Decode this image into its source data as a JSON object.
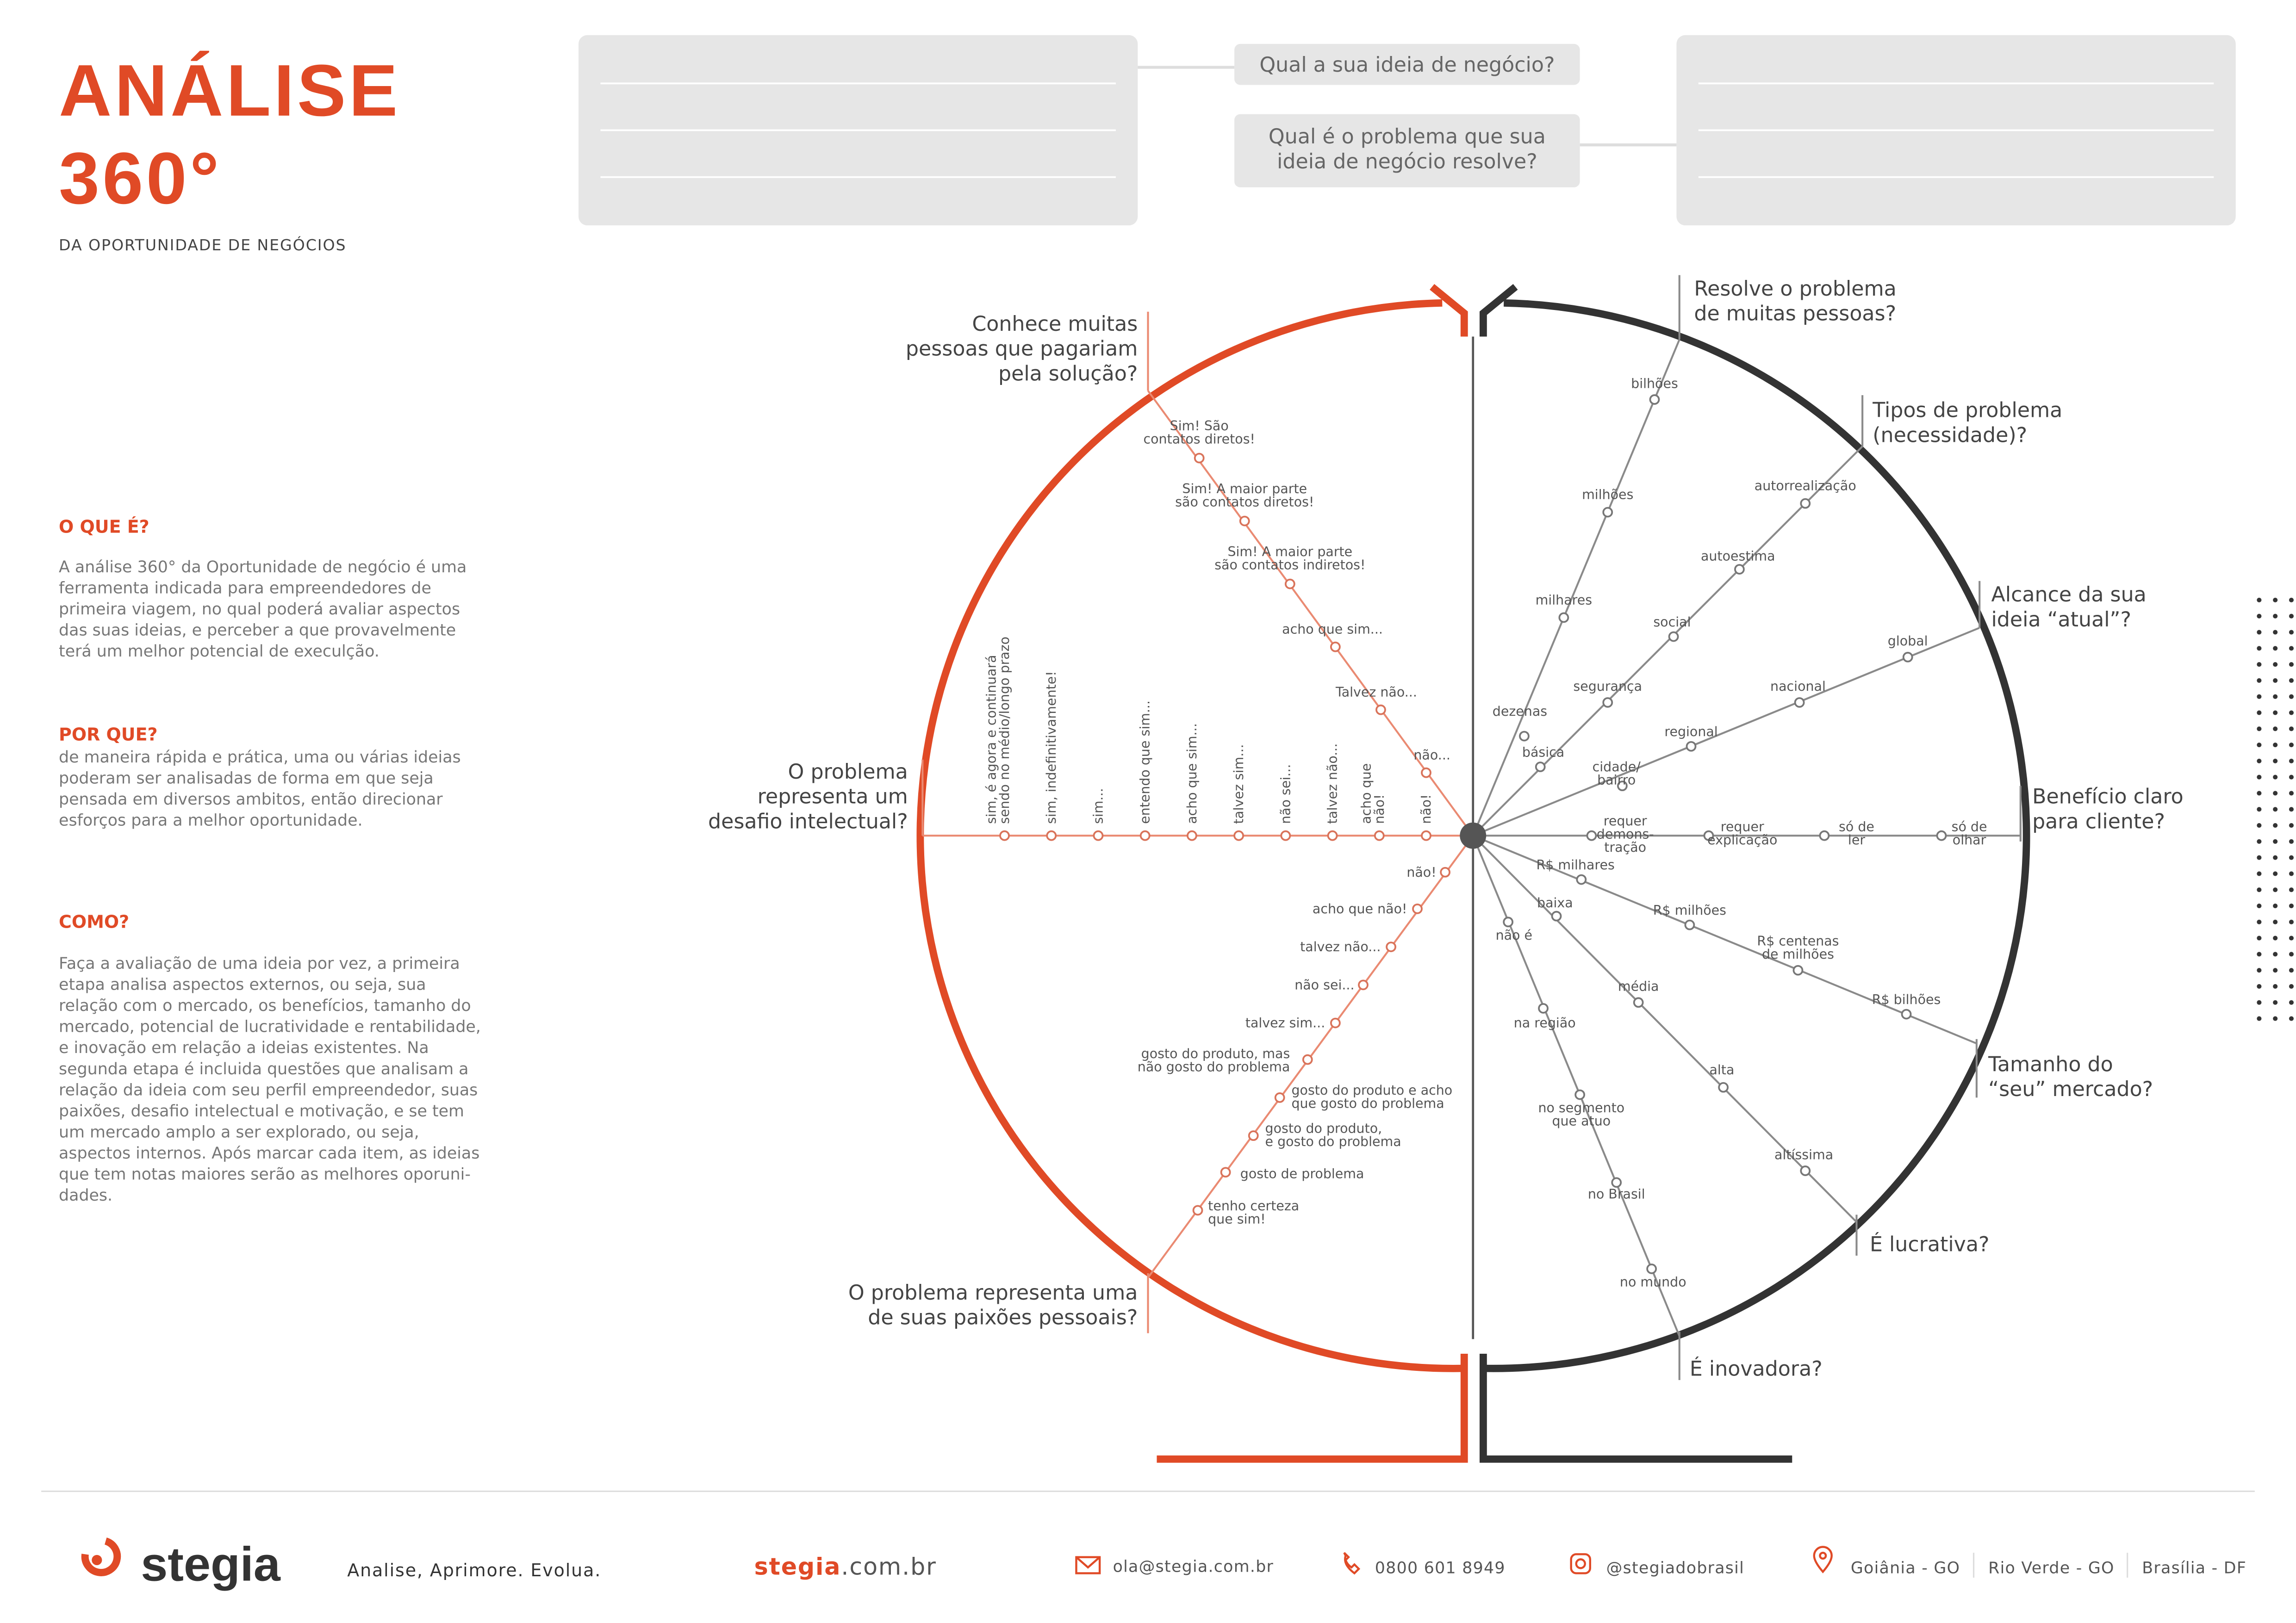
{
  "header": {
    "title_lines": [
      "ANÁLISE",
      "360°"
    ],
    "subtitle": "DA OPORTUNIDADE DE NEGÓCIOS"
  },
  "idea_questions": [
    [
      "Qual a sua  ideia de negócio?"
    ],
    [
      "Qual é o problema que sua",
      "ideia de negócio resolve?"
    ]
  ],
  "sections": [
    {
      "heading": "O QUE É?",
      "body": [
        "A análise 360° da Oportunidade de negócio é uma",
        "ferramenta indicada para empreendedores de",
        "primeira viagem, no qual poderá avaliar aspectos",
        "das suas ideias, e perceber a que provavelmente",
        "terá um melhor potencial de execulção."
      ]
    },
    {
      "heading": "POR QUE?",
      "body": [
        "de maneira rápida e prática, uma ou várias ideias",
        "poderam ser analisadas de forma em que seja",
        "pensada em diversos ambitos, então direcionar",
        "esforços para a melhor oportunidade."
      ]
    },
    {
      "heading": "COMO?",
      "body": [
        "Faça a avaliação de uma ideia por vez, a primeira",
        "etapa analisa aspectos externos, ou seja, sua",
        "relação com o mercado, os benefícios, tamanho do",
        "mercado, potencial de lucratividade e rentabilidade,",
        "e inovação em relação a ideias existentes. Na",
        "segunda etapa é incluida questões que analisam a",
        "relação da ideia com seu perfil empreendedor, suas",
        "paixões, desafio intelectual e motivação, e  se tem",
        "um mercado amplo a ser explorado, ou seja,",
        "aspectos internos. Após marcar cada item, as ideias",
        "que tem notas maiores serão as melhores oporuni-",
        "dades."
      ]
    }
  ],
  "diagram": {
    "axes": [
      {
        "question": [
          "Resolve o problema",
          "de muitas pessoas?"
        ],
        "options": [
          [
            "dezenas"
          ],
          [
            "milhares"
          ],
          [
            "milhões"
          ],
          [
            "bilhões"
          ]
        ]
      },
      {
        "question": [
          "Tipos de problema",
          "(necessidade)?"
        ],
        "options": [
          [
            "básica"
          ],
          [
            "segurança"
          ],
          [
            "social"
          ],
          [
            "autoestima"
          ],
          [
            "autorrealização"
          ]
        ]
      },
      {
        "question": [
          "Alcance da sua",
          "ideia “atual”?"
        ],
        "options": [
          [
            "cidade/",
            "bairro"
          ],
          [
            "regional"
          ],
          [
            "nacional"
          ],
          [
            "global"
          ]
        ]
      },
      {
        "question": [
          "Benefício claro",
          "para cliente?"
        ],
        "options": [
          [
            "requer",
            "demons-",
            "tração"
          ],
          [
            "requer",
            "explicação"
          ],
          [
            "só de",
            "ler"
          ],
          [
            "só de",
            "olhar"
          ]
        ]
      },
      {
        "question": [
          "Tamanho do",
          "“seu” mercado?"
        ],
        "options": [
          [
            "R$ milhares"
          ],
          [
            "R$ milhões"
          ],
          [
            "R$ centenas",
            "de milhões"
          ],
          [
            "R$ bilhões"
          ]
        ]
      },
      {
        "question": [
          "É lucrativa?"
        ],
        "options": [
          [
            "baixa"
          ],
          [
            "média"
          ],
          [
            "alta"
          ],
          [
            "altíssima"
          ]
        ]
      },
      {
        "question": [
          "É inovadora?"
        ],
        "options": [
          [
            "não é"
          ],
          [
            "na região"
          ],
          [
            "no segmento",
            "que atuo"
          ],
          [
            "no Brasil"
          ],
          [
            "no mundo"
          ]
        ]
      },
      {
        "question": [
          "Conhece muitas",
          "pessoas que pagariam",
          "pela solução?"
        ],
        "options": [
          [
            "não..."
          ],
          [
            "Talvez não..."
          ],
          [
            "acho que sim..."
          ],
          [
            "Sim! A maior parte",
            "são contatos indiretos!"
          ],
          [
            "Sim! A maior parte",
            "são contatos diretos!"
          ],
          [
            "Sim! São",
            "contatos diretos!"
          ]
        ]
      },
      {
        "question": [
          "O problema",
          "representa um",
          "desafio intelectual?"
        ],
        "options": [
          [
            "não!"
          ],
          [
            "acho que",
            "não!"
          ],
          [
            "talvez não..."
          ],
          [
            "não sei..."
          ],
          [
            "talvez sim..."
          ],
          [
            "acho que sim..."
          ],
          [
            "entendo que sim..."
          ],
          [
            "sim..."
          ],
          [
            "sim, indefinitivamente!"
          ],
          [
            "sim, é agora e continuará",
            "sendo no médio/longo prazo"
          ]
        ]
      },
      {
        "question": [
          "O problema representa uma",
          "de suas paixões pessoais?"
        ],
        "options": [
          [
            "não!"
          ],
          [
            "acho que não!"
          ],
          [
            "talvez não..."
          ],
          [
            "não sei..."
          ],
          [
            "talvez sim..."
          ],
          [
            "gosto do produto, mas",
            "não gosto do problema"
          ],
          [
            "gosto do produto e acho",
            "que gosto do problema"
          ],
          [
            "gosto do produto,",
            "e gosto do problema"
          ],
          [
            "gosto de problema"
          ],
          [
            "tenho certeza",
            "que sim!"
          ]
        ]
      }
    ]
  },
  "footer": {
    "brand": "stegia",
    "slogan": "Analise, Aprimore. Evolua.",
    "site_name": "stegia",
    "site_domain": ".com.br",
    "email": "ola@stegia.com.br",
    "phone": "0800 601 8949",
    "instagram": "@stegiadobrasil",
    "locations": [
      "Goiânia - GO",
      "Rio Verde - GO",
      "Brasília - DF"
    ]
  }
}
